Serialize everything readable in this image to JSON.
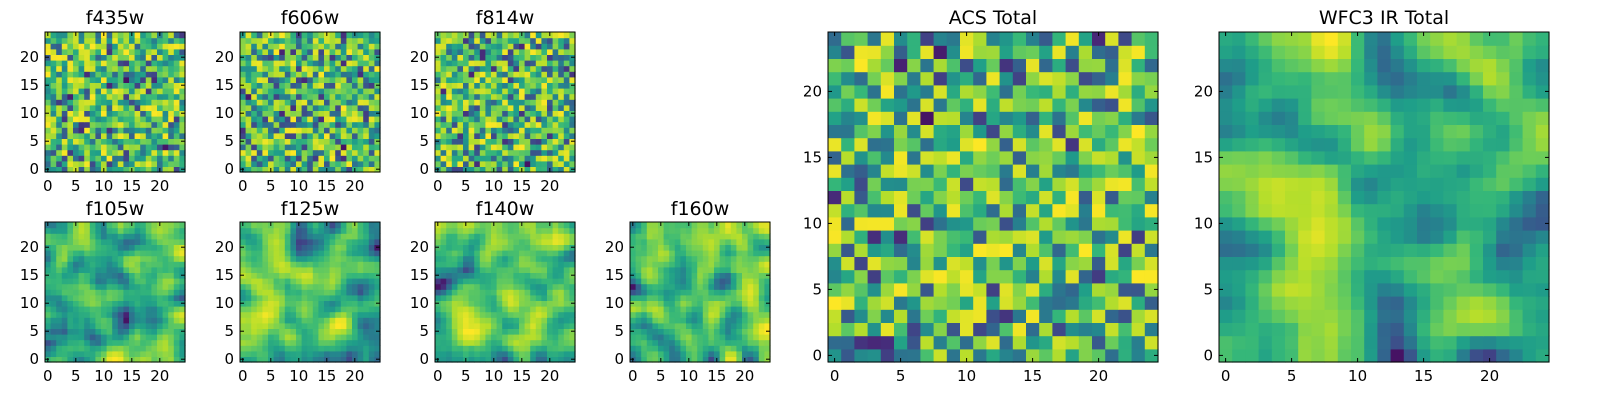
{
  "chart_data": [
    {
      "type": "heatmap",
      "title": "f435w",
      "xticks": [
        "0",
        "5",
        "10",
        "15",
        "20"
      ],
      "yticks": [
        "0",
        "5",
        "10",
        "15",
        "20"
      ],
      "xlim": [
        0,
        25
      ],
      "ylim": [
        0,
        25
      ],
      "grid_size": 25,
      "texture": "noise",
      "seed": 11,
      "colormap": "viridis",
      "grid": false,
      "colorbar": false
    },
    {
      "type": "heatmap",
      "title": "f606w",
      "xticks": [
        "0",
        "5",
        "10",
        "15",
        "20"
      ],
      "yticks": [
        "0",
        "5",
        "10",
        "15",
        "20"
      ],
      "xlim": [
        0,
        25
      ],
      "ylim": [
        0,
        25
      ],
      "grid_size": 25,
      "texture": "noise",
      "seed": 23,
      "colormap": "viridis",
      "grid": false,
      "colorbar": false
    },
    {
      "type": "heatmap",
      "title": "f814w",
      "xticks": [
        "0",
        "5",
        "10",
        "15",
        "20"
      ],
      "yticks": [
        "0",
        "5",
        "10",
        "15",
        "20"
      ],
      "xlim": [
        0,
        25
      ],
      "ylim": [
        0,
        25
      ],
      "grid_size": 25,
      "texture": "noise",
      "seed": 37,
      "colormap": "viridis",
      "grid": false,
      "colorbar": false
    },
    {
      "type": "heatmap",
      "title": "f105w",
      "xticks": [
        "0",
        "5",
        "10",
        "15",
        "20"
      ],
      "yticks": [
        "0",
        "5",
        "10",
        "15",
        "20"
      ],
      "xlim": [
        0,
        25
      ],
      "ylim": [
        0,
        25
      ],
      "grid_size": 25,
      "texture": "smooth",
      "seed": 41,
      "colormap": "viridis",
      "grid": false,
      "colorbar": false
    },
    {
      "type": "heatmap",
      "title": "f125w",
      "xticks": [
        "0",
        "5",
        "10",
        "15",
        "20"
      ],
      "yticks": [
        "0",
        "5",
        "10",
        "15",
        "20"
      ],
      "xlim": [
        0,
        25
      ],
      "ylim": [
        0,
        25
      ],
      "grid_size": 25,
      "texture": "smooth",
      "seed": 53,
      "colormap": "viridis",
      "grid": false,
      "colorbar": false
    },
    {
      "type": "heatmap",
      "title": "f140w",
      "xticks": [
        "0",
        "5",
        "10",
        "15",
        "20"
      ],
      "yticks": [
        "0",
        "5",
        "10",
        "15",
        "20"
      ],
      "xlim": [
        0,
        25
      ],
      "ylim": [
        0,
        25
      ],
      "grid_size": 25,
      "texture": "smooth",
      "seed": 67,
      "colormap": "viridis",
      "grid": false,
      "colorbar": false
    },
    {
      "type": "heatmap",
      "title": "f160w",
      "xticks": [
        "0",
        "5",
        "10",
        "15",
        "20"
      ],
      "yticks": [
        "0",
        "5",
        "10",
        "15",
        "20"
      ],
      "xlim": [
        0,
        25
      ],
      "ylim": [
        0,
        25
      ],
      "grid_size": 25,
      "texture": "smooth",
      "seed": 79,
      "colormap": "viridis",
      "grid": false,
      "colorbar": false
    },
    {
      "type": "heatmap",
      "title": "ACS Total",
      "xticks": [
        "0",
        "5",
        "10",
        "15",
        "20"
      ],
      "yticks": [
        "0",
        "5",
        "10",
        "15",
        "20"
      ],
      "xlim": [
        0,
        25
      ],
      "ylim": [
        0,
        25
      ],
      "grid_size": 25,
      "texture": "noise",
      "seed": 97,
      "colormap": "viridis",
      "grid": false,
      "colorbar": false
    },
    {
      "type": "heatmap",
      "title": "WFC3 IR Total",
      "xticks": [
        "0",
        "5",
        "10",
        "15",
        "20"
      ],
      "yticks": [
        "0",
        "5",
        "10",
        "15",
        "20"
      ],
      "xlim": [
        0,
        25
      ],
      "ylim": [
        0,
        25
      ],
      "grid_size": 25,
      "texture": "smooth",
      "seed": 101,
      "colormap": "viridis",
      "grid": false,
      "colorbar": false
    }
  ]
}
